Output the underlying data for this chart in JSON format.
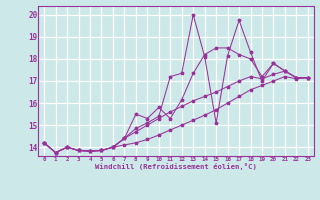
{
  "background_color": "#cce8e8",
  "grid_color": "#ffffff",
  "line_color": "#993399",
  "xlabel": "Windchill (Refroidissement éolien,°C)",
  "x_ticks": [
    0,
    1,
    2,
    3,
    4,
    5,
    6,
    7,
    8,
    9,
    10,
    11,
    12,
    13,
    14,
    15,
    16,
    17,
    18,
    19,
    20,
    21,
    22,
    23
  ],
  "y_ticks": [
    14,
    15,
    16,
    17,
    18,
    19,
    20
  ],
  "xlim": [
    -0.5,
    23.5
  ],
  "ylim": [
    13.6,
    20.4
  ],
  "series": [
    [
      14.2,
      13.75,
      14.0,
      13.85,
      13.82,
      13.85,
      14.0,
      14.4,
      14.85,
      15.1,
      15.4,
      17.2,
      17.35,
      20.0,
      18.1,
      15.1,
      18.15,
      19.75,
      18.3,
      17.0,
      17.8,
      17.45,
      17.15,
      17.15
    ],
    [
      14.2,
      13.75,
      14.0,
      13.85,
      13.82,
      13.85,
      14.0,
      14.4,
      15.5,
      15.3,
      15.8,
      15.3,
      16.15,
      17.35,
      18.2,
      18.5,
      18.5,
      18.2,
      18.0,
      17.2,
      17.8,
      17.45,
      17.15,
      17.15
    ],
    [
      14.2,
      13.75,
      14.0,
      13.85,
      13.82,
      13.85,
      14.0,
      14.4,
      14.7,
      15.0,
      15.3,
      15.6,
      15.85,
      16.1,
      16.3,
      16.5,
      16.75,
      17.0,
      17.2,
      17.1,
      17.3,
      17.45,
      17.15,
      17.15
    ],
    [
      14.2,
      13.75,
      14.0,
      13.85,
      13.82,
      13.85,
      14.0,
      14.1,
      14.2,
      14.35,
      14.55,
      14.78,
      15.0,
      15.22,
      15.45,
      15.7,
      16.0,
      16.3,
      16.6,
      16.8,
      17.0,
      17.2,
      17.1,
      17.15
    ]
  ]
}
